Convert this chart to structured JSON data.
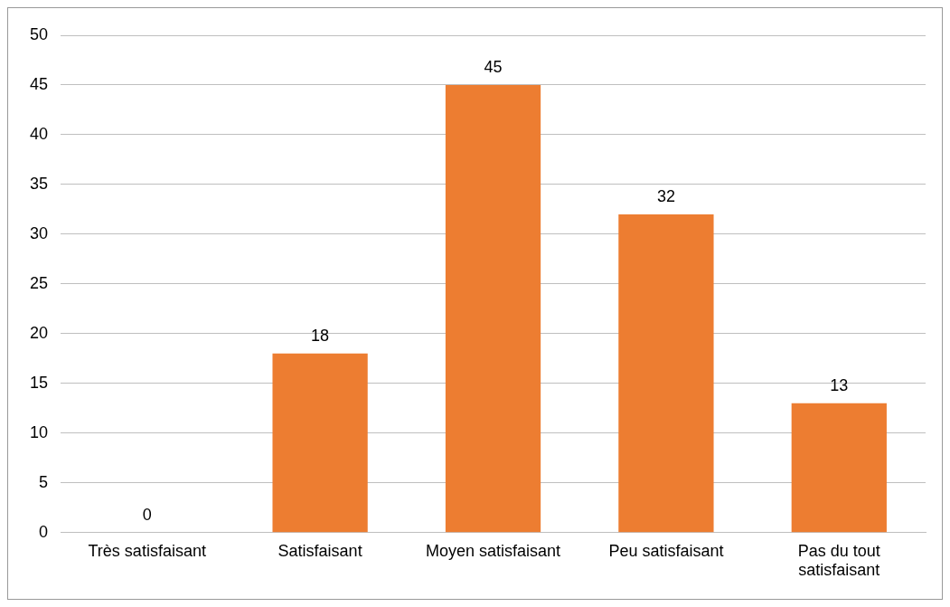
{
  "chart_data": {
    "type": "bar",
    "categories": [
      "Très satisfaisant",
      "Satisfaisant",
      "Moyen satisfaisant",
      "Peu satisfaisant",
      "Pas du tout satisfaisant"
    ],
    "values": [
      0,
      18,
      45,
      32,
      13
    ],
    "color": "#ed7d31",
    "ylim": [
      0,
      50
    ],
    "yticks": [
      0,
      5,
      10,
      15,
      20,
      25,
      30,
      35,
      40,
      45,
      50
    ],
    "grid": "y",
    "data_labels": true,
    "legend": false
  }
}
